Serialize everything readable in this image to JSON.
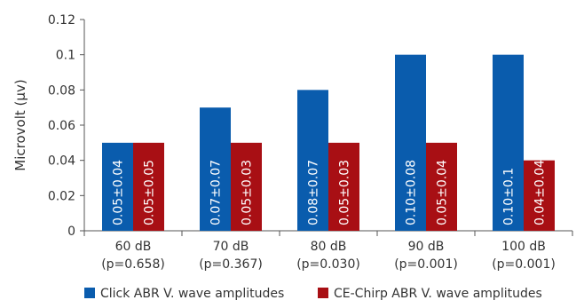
{
  "chart_data": {
    "type": "bar",
    "categories": [
      [
        "60 dB",
        "(p=0.658)"
      ],
      [
        "70 dB",
        "(p=0.367)"
      ],
      [
        "80 dB",
        "(p=0.030)"
      ],
      [
        "90 dB",
        "(p=0.001)"
      ],
      [
        "100 dB",
        "(p=0.001)"
      ]
    ],
    "series": [
      {
        "name": "Click ABR V. wave amplitudes",
        "color": "#0a5cad",
        "values": [
          0.05,
          0.07,
          0.08,
          0.1,
          0.1
        ],
        "labels": [
          "0.05±0.04",
          "0.07±0.07",
          "0.08±0.07",
          "0.10±0.08",
          "0.10±0.1"
        ]
      },
      {
        "name": "CE-Chirp ABR V. wave amplitudes",
        "color": "#a80f14",
        "values": [
          0.05,
          0.05,
          0.05,
          0.05,
          0.04
        ],
        "labels": [
          "0.05±0.05",
          "0.05±0.03",
          "0.05±0.03",
          "0.05±0.04",
          "0.04±0.04"
        ]
      }
    ],
    "ylabel": "Microvolt (μv)",
    "ylim": [
      0,
      0.12
    ],
    "yticks": [
      "0",
      "0.02",
      "0.04",
      "0.06",
      "0.08",
      "0.1",
      "0.12"
    ],
    "grid": false,
    "legend": "bottom"
  }
}
